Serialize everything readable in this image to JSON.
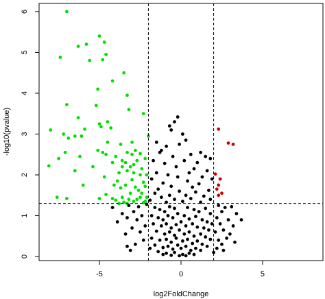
{
  "chart_data": {
    "type": "scatter",
    "title": "",
    "xlabel": "log2FoldChange",
    "ylabel": "-log10(pvalue)",
    "xlim": [
      -8.7,
      8.7
    ],
    "ylim": [
      -0.1,
      6.2
    ],
    "x_ticks": [
      -5,
      0,
      5
    ],
    "y_ticks": [
      0,
      1,
      2,
      3,
      4,
      5,
      6
    ],
    "grid": false,
    "legend": "none",
    "thresholds": {
      "vertical": [
        -2,
        2
      ],
      "horizontal": [
        1.3
      ]
    },
    "colors": {
      "down": "#00e000",
      "up": "#cc0000",
      "ns": "#000000",
      "threshold_line": "#000000"
    },
    "series": [
      {
        "color_key": "down",
        "points": [
          [
            -7.0,
            6.0
          ],
          [
            -5.0,
            5.4
          ],
          [
            -4.7,
            5.25
          ],
          [
            -5.8,
            5.2
          ],
          [
            -6.3,
            5.15
          ],
          [
            -4.6,
            4.95
          ],
          [
            -7.4,
            4.88
          ],
          [
            -4.8,
            4.82
          ],
          [
            -5.6,
            4.8
          ],
          [
            -3.5,
            4.5
          ],
          [
            -4.2,
            4.3
          ],
          [
            -5.1,
            4.1
          ],
          [
            -3.3,
            3.95
          ],
          [
            -5.2,
            3.7
          ],
          [
            -7.0,
            3.72
          ],
          [
            -3.2,
            3.6
          ],
          [
            -4.5,
            3.3
          ],
          [
            -2.3,
            3.5
          ],
          [
            -5.0,
            3.25
          ],
          [
            -6.3,
            3.4
          ],
          [
            -4.9,
            3.18
          ],
          [
            -7.2,
            3.0
          ],
          [
            -4.3,
            3.15
          ],
          [
            -8.0,
            3.1
          ],
          [
            -5.9,
            3.12
          ],
          [
            -6.5,
            2.95
          ],
          [
            -6.9,
            2.9
          ],
          [
            -6.1,
            2.95
          ],
          [
            -3.0,
            2.8
          ],
          [
            -2.0,
            2.95
          ],
          [
            -3.7,
            2.75
          ],
          [
            -4.8,
            2.55
          ],
          [
            -7.1,
            2.55
          ],
          [
            -4.5,
            2.8
          ],
          [
            -5.1,
            2.6
          ],
          [
            -4.6,
            2.5
          ],
          [
            -6.2,
            2.45
          ],
          [
            -2.8,
            2.6
          ],
          [
            -3.3,
            2.55
          ],
          [
            -2.5,
            2.52
          ],
          [
            -3.0,
            2.5
          ],
          [
            -7.5,
            2.4
          ],
          [
            -4.0,
            2.45
          ],
          [
            -3.6,
            2.35
          ],
          [
            -3.4,
            2.3
          ],
          [
            -2.7,
            2.35
          ],
          [
            -2.2,
            2.4
          ],
          [
            -3.6,
            2.2
          ],
          [
            -4.2,
            2.3
          ],
          [
            -2.9,
            2.25
          ],
          [
            -5.4,
            2.2
          ],
          [
            -3.1,
            2.2
          ],
          [
            -3.3,
            2.1
          ],
          [
            -8.1,
            2.22
          ],
          [
            -2.4,
            2.15
          ],
          [
            -2.9,
            2.05
          ],
          [
            -6.5,
            2.1
          ],
          [
            -2.5,
            2.0
          ],
          [
            -3.8,
            2.05
          ],
          [
            -4.7,
            1.95
          ],
          [
            -2.1,
            2.0
          ],
          [
            -3.9,
            1.85
          ],
          [
            -3.0,
            1.88
          ],
          [
            -2.3,
            1.82
          ],
          [
            -3.4,
            1.75
          ],
          [
            -2.8,
            1.7
          ],
          [
            -2.2,
            1.72
          ],
          [
            -6.0,
            1.75
          ],
          [
            -4.1,
            1.75
          ],
          [
            -3.7,
            1.68
          ],
          [
            -2.6,
            1.62
          ],
          [
            -3.1,
            1.55
          ],
          [
            -2.4,
            1.55
          ],
          [
            -4.6,
            1.52
          ],
          [
            -3.6,
            1.45
          ],
          [
            -3.2,
            1.4
          ],
          [
            -2.5,
            1.45
          ],
          [
            -2.1,
            1.45
          ],
          [
            -4.2,
            1.42
          ],
          [
            -2.9,
            1.35
          ],
          [
            -3.8,
            1.3
          ],
          [
            -2.3,
            1.32
          ],
          [
            -7.6,
            1.45
          ],
          [
            -7.0,
            1.42
          ],
          [
            -3.5,
            1.33
          ],
          [
            -2.7,
            1.4
          ],
          [
            -4.0,
            1.38
          ],
          [
            -2.2,
            1.35
          ],
          [
            -5.0,
            1.42
          ],
          [
            -3.3,
            1.3
          ]
        ]
      },
      {
        "color_key": "up",
        "points": [
          [
            2.3,
            3.12
          ],
          [
            2.9,
            2.78
          ],
          [
            3.2,
            2.75
          ],
          [
            2.1,
            2.02
          ],
          [
            2.4,
            1.9
          ],
          [
            2.3,
            1.75
          ],
          [
            2.2,
            1.65
          ],
          [
            2.5,
            1.55
          ],
          [
            2.3,
            1.5
          ]
        ]
      },
      {
        "color_key": "ns",
        "description_free": true,
        "points": [
          [
            -0.2,
            3.42
          ],
          [
            -0.4,
            3.3
          ],
          [
            -0.7,
            3.2
          ],
          [
            0.1,
            3.0
          ],
          [
            -0.6,
            3.1
          ],
          [
            0.3,
            2.85
          ],
          [
            -1.5,
            2.8
          ],
          [
            -0.9,
            2.7
          ],
          [
            -1.2,
            2.6
          ],
          [
            -0.1,
            2.75
          ],
          [
            -1.3,
            2.55
          ],
          [
            1.2,
            2.55
          ],
          [
            1.5,
            2.45
          ],
          [
            0.6,
            2.5
          ],
          [
            -0.5,
            2.45
          ],
          [
            1.8,
            2.4
          ],
          [
            -1.7,
            2.35
          ],
          [
            0.2,
            2.35
          ],
          [
            1.0,
            2.3
          ],
          [
            -1.0,
            2.28
          ],
          [
            -0.3,
            2.2
          ],
          [
            0.8,
            2.15
          ],
          [
            1.6,
            2.1
          ],
          [
            -1.5,
            2.05
          ],
          [
            0.5,
            2.05
          ],
          [
            -0.8,
            2.0
          ],
          [
            1.3,
            1.95
          ],
          [
            -0.2,
            1.95
          ],
          [
            1.9,
            1.9
          ],
          [
            -1.8,
            1.9
          ],
          [
            0.4,
            1.85
          ],
          [
            -1.1,
            1.8
          ],
          [
            1.1,
            1.78
          ],
          [
            -0.6,
            1.72
          ],
          [
            0.7,
            1.7
          ],
          [
            -1.4,
            1.65
          ],
          [
            1.7,
            1.62
          ],
          [
            -0.1,
            1.6
          ],
          [
            0.9,
            1.58
          ],
          [
            -1.6,
            1.55
          ],
          [
            -0.7,
            1.5
          ],
          [
            0.3,
            1.5
          ],
          [
            1.4,
            1.48
          ],
          [
            -1.2,
            1.45
          ],
          [
            0.6,
            1.42
          ],
          [
            -0.4,
            1.4
          ],
          [
            1.8,
            1.4
          ],
          [
            -1.9,
            1.38
          ],
          [
            0.1,
            1.35
          ],
          [
            -0.9,
            1.33
          ],
          [
            1.2,
            1.33
          ],
          [
            -2.1,
            1.28
          ],
          [
            -2.6,
            1.22
          ],
          [
            -3.2,
            1.25
          ],
          [
            -4.2,
            1.2
          ],
          [
            -2.9,
            1.1
          ],
          [
            -3.6,
            1.05
          ],
          [
            -2.4,
            1.0
          ],
          [
            -3.3,
            0.95
          ],
          [
            -2.7,
            0.9
          ],
          [
            -3.9,
            0.85
          ],
          [
            -2.2,
            0.75
          ],
          [
            -3.0,
            0.7
          ],
          [
            -2.5,
            0.6
          ],
          [
            -3.4,
            0.55
          ],
          [
            -2.3,
            0.4
          ],
          [
            -2.8,
            0.3
          ],
          [
            -1.9,
            0.2
          ],
          [
            -3.1,
            0.15
          ],
          [
            -3.3,
            0.25
          ],
          [
            2.3,
            1.25
          ],
          [
            2.7,
            1.2
          ],
          [
            3.1,
            1.22
          ],
          [
            2.5,
            1.1
          ],
          [
            3.4,
            1.05
          ],
          [
            2.2,
            0.95
          ],
          [
            2.9,
            0.9
          ],
          [
            3.7,
            0.9
          ],
          [
            2.4,
            0.8
          ],
          [
            3.2,
            0.75
          ],
          [
            2.6,
            0.65
          ],
          [
            2.1,
            0.6
          ],
          [
            3.0,
            0.55
          ],
          [
            2.8,
            0.45
          ],
          [
            2.3,
            0.4
          ],
          [
            2.5,
            0.3
          ],
          [
            3.3,
            0.35
          ],
          [
            2.2,
            0.2
          ],
          [
            2.0,
            0.1
          ],
          [
            2.6,
            0.15
          ],
          [
            -1.6,
            1.2
          ],
          [
            -1.3,
            1.15
          ],
          [
            -1.0,
            1.1
          ],
          [
            -0.7,
            1.22
          ],
          [
            -0.4,
            1.18
          ],
          [
            0.4,
            1.2
          ],
          [
            0.8,
            1.15
          ],
          [
            1.1,
            1.1
          ],
          [
            1.5,
            1.18
          ],
          [
            1.8,
            1.05
          ],
          [
            -1.8,
            1.0
          ],
          [
            -1.4,
            0.95
          ],
          [
            -1.1,
            0.9
          ],
          [
            -0.8,
            1.0
          ],
          [
            -0.5,
            0.95
          ],
          [
            -0.2,
            1.05
          ],
          [
            0.2,
            1.0
          ],
          [
            0.5,
            0.92
          ],
          [
            0.9,
            0.98
          ],
          [
            1.3,
            0.9
          ],
          [
            1.6,
            0.85
          ],
          [
            1.9,
            0.8
          ],
          [
            -1.7,
            0.8
          ],
          [
            -1.2,
            0.75
          ],
          [
            -0.9,
            0.8
          ],
          [
            -0.6,
            0.7
          ],
          [
            -0.3,
            0.78
          ],
          [
            0.0,
            0.85
          ],
          [
            0.3,
            0.75
          ],
          [
            0.7,
            0.8
          ],
          [
            1.0,
            0.72
          ],
          [
            1.4,
            0.7
          ],
          [
            1.7,
            0.65
          ],
          [
            -1.5,
            0.62
          ],
          [
            -1.0,
            0.55
          ],
          [
            -0.7,
            0.6
          ],
          [
            -0.4,
            0.52
          ],
          [
            -0.1,
            0.65
          ],
          [
            0.2,
            0.55
          ],
          [
            0.5,
            0.6
          ],
          [
            0.8,
            0.5
          ],
          [
            1.2,
            0.55
          ],
          [
            1.5,
            0.48
          ],
          [
            1.8,
            0.42
          ],
          [
            -1.8,
            0.45
          ],
          [
            -1.3,
            0.4
          ],
          [
            -0.9,
            0.42
          ],
          [
            -0.6,
            0.35
          ],
          [
            -0.3,
            0.45
          ],
          [
            0.1,
            0.38
          ],
          [
            0.4,
            0.42
          ],
          [
            0.7,
            0.32
          ],
          [
            1.0,
            0.38
          ],
          [
            1.3,
            0.3
          ],
          [
            1.6,
            0.25
          ],
          [
            -1.6,
            0.28
          ],
          [
            -1.1,
            0.22
          ],
          [
            -0.8,
            0.25
          ],
          [
            -0.5,
            0.18
          ],
          [
            -0.2,
            0.28
          ],
          [
            0.0,
            0.2
          ],
          [
            0.3,
            0.25
          ],
          [
            0.6,
            0.15
          ],
          [
            0.9,
            0.2
          ],
          [
            1.2,
            0.15
          ],
          [
            -1.4,
            0.12
          ],
          [
            -0.9,
            0.08
          ],
          [
            -0.4,
            0.1
          ],
          [
            0.1,
            0.05
          ],
          [
            0.5,
            0.08
          ],
          [
            0.8,
            0.05
          ],
          [
            -0.6,
            0.03
          ],
          [
            -0.1,
            0.02
          ],
          [
            0.3,
            0.02
          ],
          [
            -1.1,
            0.05
          ]
        ]
      }
    ]
  }
}
